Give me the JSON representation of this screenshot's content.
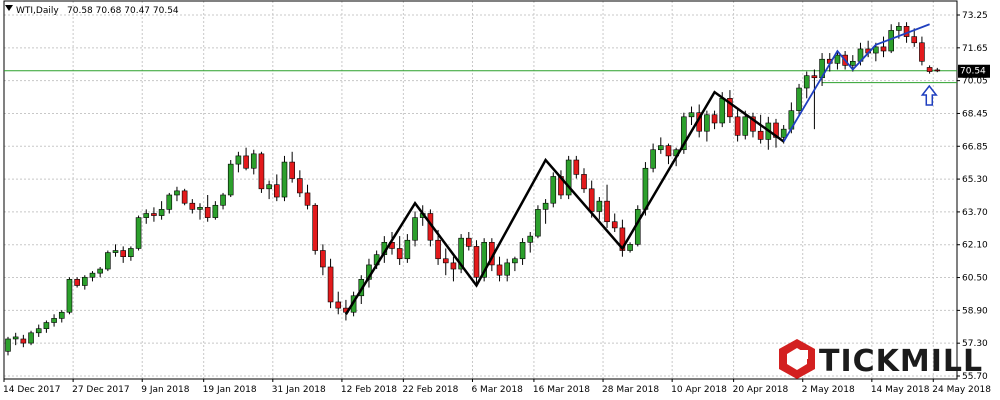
{
  "info_bar": {
    "symbol": "WTI,Daily",
    "ohlc": "70.58 70.68 70.47 70.54"
  },
  "current_price": "70.54",
  "brand": {
    "name": "TICKMILL"
  },
  "colors": {
    "bull": "#2ca02c",
    "bear": "#e31a1c",
    "wick": "#000000",
    "grid": "#c8c8c8",
    "zigzag": "#000000",
    "recent_wave": "#1f3fbf",
    "support_line": "#2ca02c",
    "arrow": "#1f3fbf",
    "logo_mark": "#d32020"
  },
  "chart_data": {
    "type": "candlestick",
    "y_ticks": [
      "73.25",
      "71.65",
      "70.05",
      "68.45",
      "66.85",
      "65.30",
      "63.70",
      "62.10",
      "60.50",
      "58.90",
      "57.30",
      "55.70"
    ],
    "ylim": [
      55.7,
      73.25
    ],
    "x_ticks": [
      "14 Dec 2017",
      "27 Dec 2017",
      "9 Jan 2018",
      "19 Jan 2018",
      "31 Jan 2018",
      "12 Feb 2018",
      "22 Feb 2018",
      "6 Mar 2018",
      "16 Mar 2018",
      "28 Mar 2018",
      "10 Apr 2018",
      "20 Apr 2018",
      "2 May 2018",
      "14 May 2018",
      "24 May 2018"
    ],
    "x_tick_index": [
      0,
      9,
      18,
      26,
      35,
      44,
      52,
      61,
      69,
      78,
      87,
      95,
      104,
      113,
      121
    ],
    "candles": [
      [
        56.9,
        57.6,
        56.7,
        57.5
      ],
      [
        57.5,
        57.8,
        57.2,
        57.6
      ],
      [
        57.5,
        57.7,
        57.1,
        57.3
      ],
      [
        57.3,
        57.9,
        57.2,
        57.8
      ],
      [
        57.8,
        58.2,
        57.6,
        58.0
      ],
      [
        58.0,
        58.4,
        57.8,
        58.3
      ],
      [
        58.3,
        58.7,
        58.1,
        58.5
      ],
      [
        58.5,
        58.9,
        58.3,
        58.8
      ],
      [
        58.8,
        60.5,
        58.7,
        60.4
      ],
      [
        60.4,
        60.5,
        60.0,
        60.1
      ],
      [
        60.1,
        60.6,
        59.9,
        60.5
      ],
      [
        60.5,
        60.8,
        60.3,
        60.7
      ],
      [
        60.7,
        61.0,
        60.5,
        60.9
      ],
      [
        60.9,
        61.8,
        60.8,
        61.7
      ],
      [
        61.7,
        62.1,
        61.5,
        61.8
      ],
      [
        61.8,
        62.0,
        61.2,
        61.5
      ],
      [
        61.5,
        62.0,
        61.3,
        61.9
      ],
      [
        61.9,
        63.5,
        61.8,
        63.4
      ],
      [
        63.4,
        63.8,
        63.1,
        63.6
      ],
      [
        63.6,
        63.9,
        63.2,
        63.5
      ],
      [
        63.5,
        64.2,
        63.3,
        63.8
      ],
      [
        63.8,
        64.6,
        63.6,
        64.5
      ],
      [
        64.5,
        64.9,
        64.2,
        64.7
      ],
      [
        64.7,
        64.8,
        64.0,
        64.1
      ],
      [
        64.1,
        64.3,
        63.6,
        63.8
      ],
      [
        63.8,
        64.1,
        63.3,
        63.9
      ],
      [
        63.9,
        64.5,
        63.2,
        63.4
      ],
      [
        63.4,
        64.2,
        63.3,
        64.0
      ],
      [
        64.0,
        64.6,
        63.8,
        64.5
      ],
      [
        64.5,
        66.2,
        64.4,
        66.0
      ],
      [
        66.0,
        66.6,
        65.6,
        66.4
      ],
      [
        66.4,
        66.8,
        65.7,
        65.8
      ],
      [
        65.8,
        66.7,
        65.5,
        66.5
      ],
      [
        66.5,
        66.6,
        64.6,
        64.8
      ],
      [
        64.8,
        65.2,
        64.3,
        65.0
      ],
      [
        65.0,
        65.5,
        64.2,
        64.4
      ],
      [
        64.4,
        66.4,
        64.2,
        66.1
      ],
      [
        66.1,
        66.6,
        65.1,
        65.3
      ],
      [
        65.3,
        65.7,
        64.4,
        64.6
      ],
      [
        64.6,
        65.0,
        63.8,
        64.0
      ],
      [
        64.0,
        64.1,
        61.6,
        61.8
      ],
      [
        61.8,
        62.1,
        60.6,
        61.0
      ],
      [
        61.0,
        61.4,
        59.0,
        59.3
      ],
      [
        59.3,
        59.8,
        58.7,
        59.0
      ],
      [
        59.0,
        59.4,
        58.4,
        58.8
      ],
      [
        58.8,
        59.8,
        58.6,
        59.6
      ],
      [
        59.6,
        60.6,
        59.2,
        60.4
      ],
      [
        60.4,
        61.4,
        60.0,
        61.1
      ],
      [
        61.1,
        61.8,
        60.9,
        61.6
      ],
      [
        61.6,
        62.5,
        61.2,
        62.2
      ],
      [
        62.2,
        62.7,
        61.6,
        61.9
      ],
      [
        61.9,
        62.5,
        61.1,
        61.4
      ],
      [
        61.4,
        62.6,
        61.2,
        62.3
      ],
      [
        62.3,
        63.7,
        62.0,
        63.4
      ],
      [
        63.4,
        64.0,
        63.0,
        63.6
      ],
      [
        63.6,
        63.8,
        62.0,
        62.3
      ],
      [
        62.3,
        62.8,
        61.1,
        61.4
      ],
      [
        61.4,
        61.9,
        60.6,
        61.2
      ],
      [
        61.2,
        61.5,
        60.3,
        60.9
      ],
      [
        60.9,
        62.6,
        60.7,
        62.4
      ],
      [
        62.4,
        62.7,
        61.8,
        62.0
      ],
      [
        62.0,
        62.3,
        60.2,
        60.5
      ],
      [
        60.5,
        62.4,
        60.3,
        62.2
      ],
      [
        62.2,
        62.4,
        60.8,
        61.1
      ],
      [
        61.1,
        61.5,
        60.3,
        60.6
      ],
      [
        60.6,
        61.4,
        60.3,
        61.2
      ],
      [
        61.2,
        61.5,
        60.8,
        61.4
      ],
      [
        61.4,
        62.4,
        61.1,
        62.2
      ],
      [
        62.2,
        62.7,
        61.7,
        62.5
      ],
      [
        62.5,
        64.0,
        62.4,
        63.8
      ],
      [
        63.8,
        64.3,
        63.1,
        64.1
      ],
      [
        64.1,
        65.6,
        63.9,
        65.4
      ],
      [
        65.4,
        65.7,
        64.3,
        64.5
      ],
      [
        64.5,
        66.4,
        64.3,
        66.2
      ],
      [
        66.2,
        66.4,
        65.3,
        65.5
      ],
      [
        65.5,
        65.8,
        64.6,
        64.8
      ],
      [
        64.8,
        65.2,
        63.4,
        63.7
      ],
      [
        63.7,
        64.4,
        63.3,
        64.2
      ],
      [
        64.2,
        65.0,
        62.9,
        63.2
      ],
      [
        63.2,
        63.6,
        62.7,
        62.9
      ],
      [
        62.9,
        63.3,
        61.5,
        61.8
      ],
      [
        61.8,
        62.2,
        61.7,
        62.1
      ],
      [
        62.1,
        64.0,
        62.0,
        63.8
      ],
      [
        63.8,
        66.1,
        63.5,
        65.8
      ],
      [
        65.8,
        67.0,
        65.6,
        66.7
      ],
      [
        66.7,
        67.3,
        66.5,
        66.9
      ],
      [
        66.9,
        67.0,
        66.0,
        66.4
      ],
      [
        66.4,
        66.8,
        65.9,
        66.7
      ],
      [
        66.7,
        68.5,
        66.5,
        68.3
      ],
      [
        68.3,
        68.8,
        67.9,
        68.5
      ],
      [
        68.5,
        68.9,
        67.3,
        67.6
      ],
      [
        67.6,
        68.6,
        67.1,
        68.4
      ],
      [
        68.4,
        68.6,
        67.7,
        68.0
      ],
      [
        68.0,
        69.5,
        67.8,
        69.2
      ],
      [
        69.2,
        69.6,
        68.0,
        68.3
      ],
      [
        68.3,
        68.7,
        67.1,
        67.4
      ],
      [
        67.4,
        68.6,
        67.2,
        68.3
      ],
      [
        68.3,
        68.5,
        67.3,
        67.6
      ],
      [
        67.6,
        68.4,
        67.0,
        67.2
      ],
      [
        67.2,
        68.3,
        66.7,
        68.0
      ],
      [
        68.0,
        68.2,
        66.8,
        67.3
      ],
      [
        67.3,
        67.9,
        67.0,
        67.7
      ],
      [
        67.7,
        69.0,
        67.5,
        68.6
      ],
      [
        68.6,
        69.9,
        68.4,
        69.7
      ],
      [
        69.7,
        70.5,
        69.2,
        70.3
      ],
      [
        70.3,
        70.6,
        67.7,
        70.2
      ],
      [
        70.2,
        71.4,
        69.8,
        71.1
      ],
      [
        71.1,
        71.4,
        70.5,
        70.9
      ],
      [
        70.9,
        71.5,
        70.6,
        71.3
      ],
      [
        71.3,
        71.5,
        70.6,
        70.8
      ],
      [
        70.8,
        71.3,
        70.5,
        71.0
      ],
      [
        71.0,
        71.9,
        70.8,
        71.6
      ],
      [
        71.6,
        72.0,
        71.2,
        71.4
      ],
      [
        71.4,
        71.9,
        71.0,
        71.7
      ],
      [
        71.7,
        72.2,
        71.2,
        71.5
      ],
      [
        71.5,
        72.8,
        71.4,
        72.5
      ],
      [
        72.5,
        72.9,
        72.1,
        72.7
      ],
      [
        72.7,
        72.9,
        71.9,
        72.2
      ],
      [
        72.2,
        72.6,
        71.7,
        71.9
      ],
      [
        71.9,
        72.2,
        70.8,
        71.0
      ],
      [
        70.7,
        70.8,
        70.4,
        70.5
      ],
      [
        70.58,
        70.68,
        70.47,
        70.54
      ]
    ],
    "zigzag_points": [
      [
        44,
        58.7
      ],
      [
        53,
        64.1
      ],
      [
        61,
        60.1
      ],
      [
        70,
        66.2
      ],
      [
        80,
        61.9
      ],
      [
        92,
        69.5
      ],
      [
        101,
        67.1
      ],
      [
        108,
        71.5
      ],
      [
        110,
        70.6
      ],
      [
        113,
        71.8
      ],
      [
        120,
        72.8
      ]
    ],
    "support_level": 70.35,
    "arrow_index": 121
  }
}
